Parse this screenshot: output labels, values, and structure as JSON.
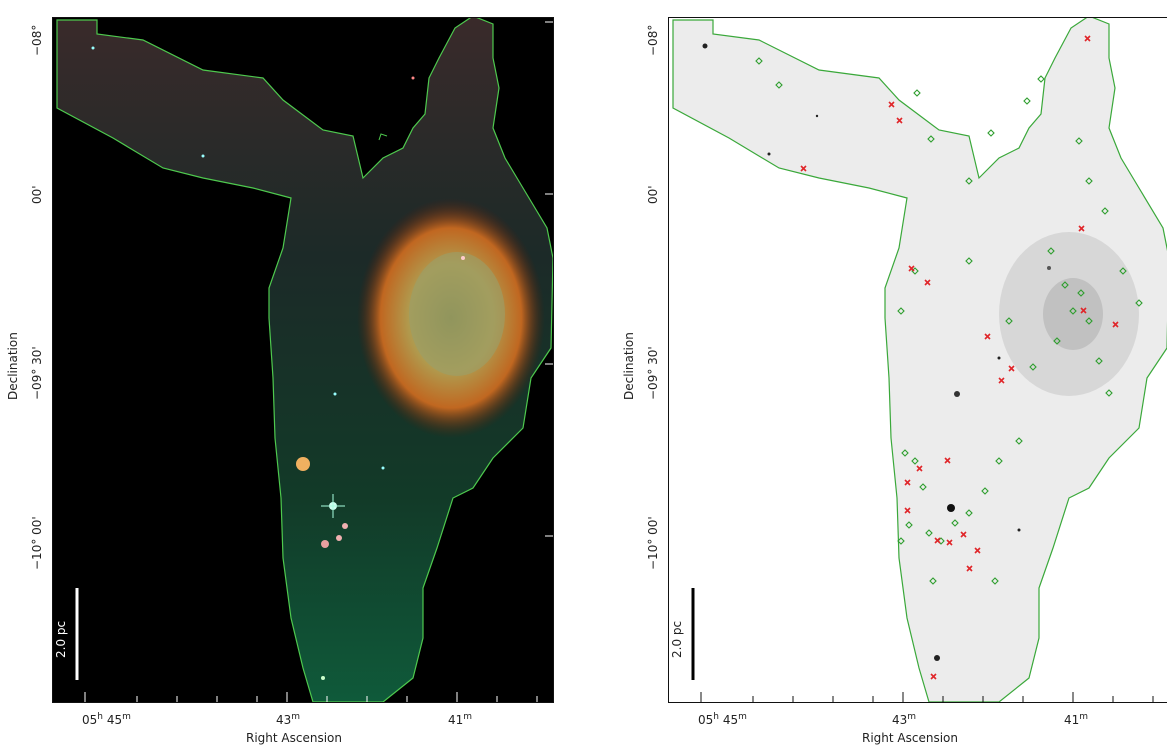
{
  "figure": {
    "panels": [
      {
        "id": "left",
        "image_style": "false-color infrared composite (red/green/blue) with nebula bubble",
        "x_axis_label": "Right Ascension",
        "y_axis_label": "Declination",
        "x_ticks": [
          {
            "main": "05",
            "sup1": "h",
            "main2": " 45",
            "sup2": "m"
          },
          {
            "main": "43",
            "sup1": "m",
            "main2": "",
            "sup2": ""
          },
          {
            "main": "41",
            "sup1": "m",
            "main2": "",
            "sup2": ""
          }
        ],
        "y_ticks": [
          {
            "text": "−08°"
          },
          {
            "text": "00'"
          },
          {
            "text": "−09° 30'"
          },
          {
            "text": "−10° 00'"
          }
        ],
        "scale_bar_label": "2.0 pc",
        "scale_bar_color": "#ffffff",
        "outline_color": "#4ec94e"
      },
      {
        "id": "right",
        "image_style": "inverted greyscale image with source markers",
        "x_axis_label": "Right Ascension",
        "y_axis_label": "Declination",
        "x_ticks": [
          {
            "main": "05",
            "sup1": "h",
            "main2": " 45",
            "sup2": "m"
          },
          {
            "main": "43",
            "sup1": "m",
            "main2": "",
            "sup2": ""
          },
          {
            "main": "41",
            "sup1": "m",
            "main2": "",
            "sup2": ""
          }
        ],
        "y_ticks": [
          {
            "text": "−08°"
          },
          {
            "text": "00'"
          },
          {
            "text": "−09° 30'"
          },
          {
            "text": "−10° 00'"
          }
        ],
        "scale_bar_label": "2.0 pc",
        "scale_bar_color": "#000000",
        "outline_color": "#3aa83a",
        "marker_colors": {
          "diamond": "#2e9e2e",
          "cross": "#e0262a"
        }
      }
    ]
  }
}
